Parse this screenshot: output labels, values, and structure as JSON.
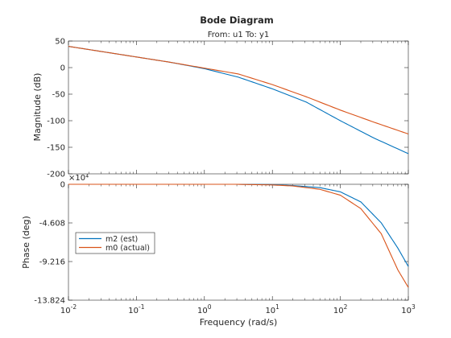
{
  "chart_data": {
    "type": "line",
    "title": "Bode Diagram",
    "subtitle": "From: u1  To: y1",
    "xlabel": "Frequency  (rad/s)",
    "x_scale": "log",
    "xlim": [
      0.01,
      1000
    ],
    "x_ticks": [
      {
        "base": "10",
        "exp": "-2"
      },
      {
        "base": "10",
        "exp": "-1"
      },
      {
        "base": "10",
        "exp": "0"
      },
      {
        "base": "10",
        "exp": "1"
      },
      {
        "base": "10",
        "exp": "2"
      },
      {
        "base": "10",
        "exp": "3"
      }
    ],
    "magnitude": {
      "ylabel": "Magnitude (dB)",
      "ylim": [
        -200,
        50
      ],
      "y_ticks": [
        "50",
        "0",
        "-50",
        "-100",
        "-150",
        "-200"
      ],
      "series": [
        {
          "name": "m2 (est)",
          "color": "#0072BD",
          "x": [
            0.01,
            0.0316,
            0.1,
            0.316,
            1,
            3.16,
            10,
            31.6,
            100,
            316,
            1000
          ],
          "y": [
            40,
            30,
            20,
            10,
            -2,
            -18,
            -40,
            -65,
            -100,
            -133,
            -162
          ]
        },
        {
          "name": "m0 (actual)",
          "color": "#D95319",
          "x": [
            0.01,
            0.0316,
            0.1,
            0.316,
            1,
            3.16,
            10,
            31.6,
            100,
            316,
            1000
          ],
          "y": [
            40,
            30,
            20,
            10,
            -1,
            -12,
            -32,
            -55,
            -80,
            -103,
            -125
          ]
        }
      ]
    },
    "phase": {
      "ylabel": "Phase (deg)",
      "exponent_label": "×10⁴",
      "ylim": [
        -13.824,
        0
      ],
      "y_ticks": [
        "0",
        "-4.608",
        "-9.216",
        "-13.824"
      ],
      "series": [
        {
          "name": "m2 (est)",
          "color": "#0072BD",
          "x": [
            0.01,
            1,
            3,
            10,
            20,
            50,
            100,
            200,
            400,
            700,
            1000
          ],
          "y": [
            0,
            0,
            0,
            -0.05,
            -0.15,
            -0.4,
            -0.9,
            -2.1,
            -4.6,
            -7.6,
            -9.8
          ]
        },
        {
          "name": "m0 (actual)",
          "color": "#D95319",
          "x": [
            0.01,
            1,
            3,
            10,
            20,
            50,
            100,
            200,
            400,
            700,
            1000
          ],
          "y": [
            0,
            0,
            0,
            -0.08,
            -0.2,
            -0.6,
            -1.3,
            -2.9,
            -5.9,
            -10.2,
            -12.3
          ]
        }
      ]
    },
    "legend": {
      "placement": "middle-left of phase plot",
      "entries": [
        "m2 (est)",
        "m0 (actual)"
      ]
    },
    "grid": false
  }
}
